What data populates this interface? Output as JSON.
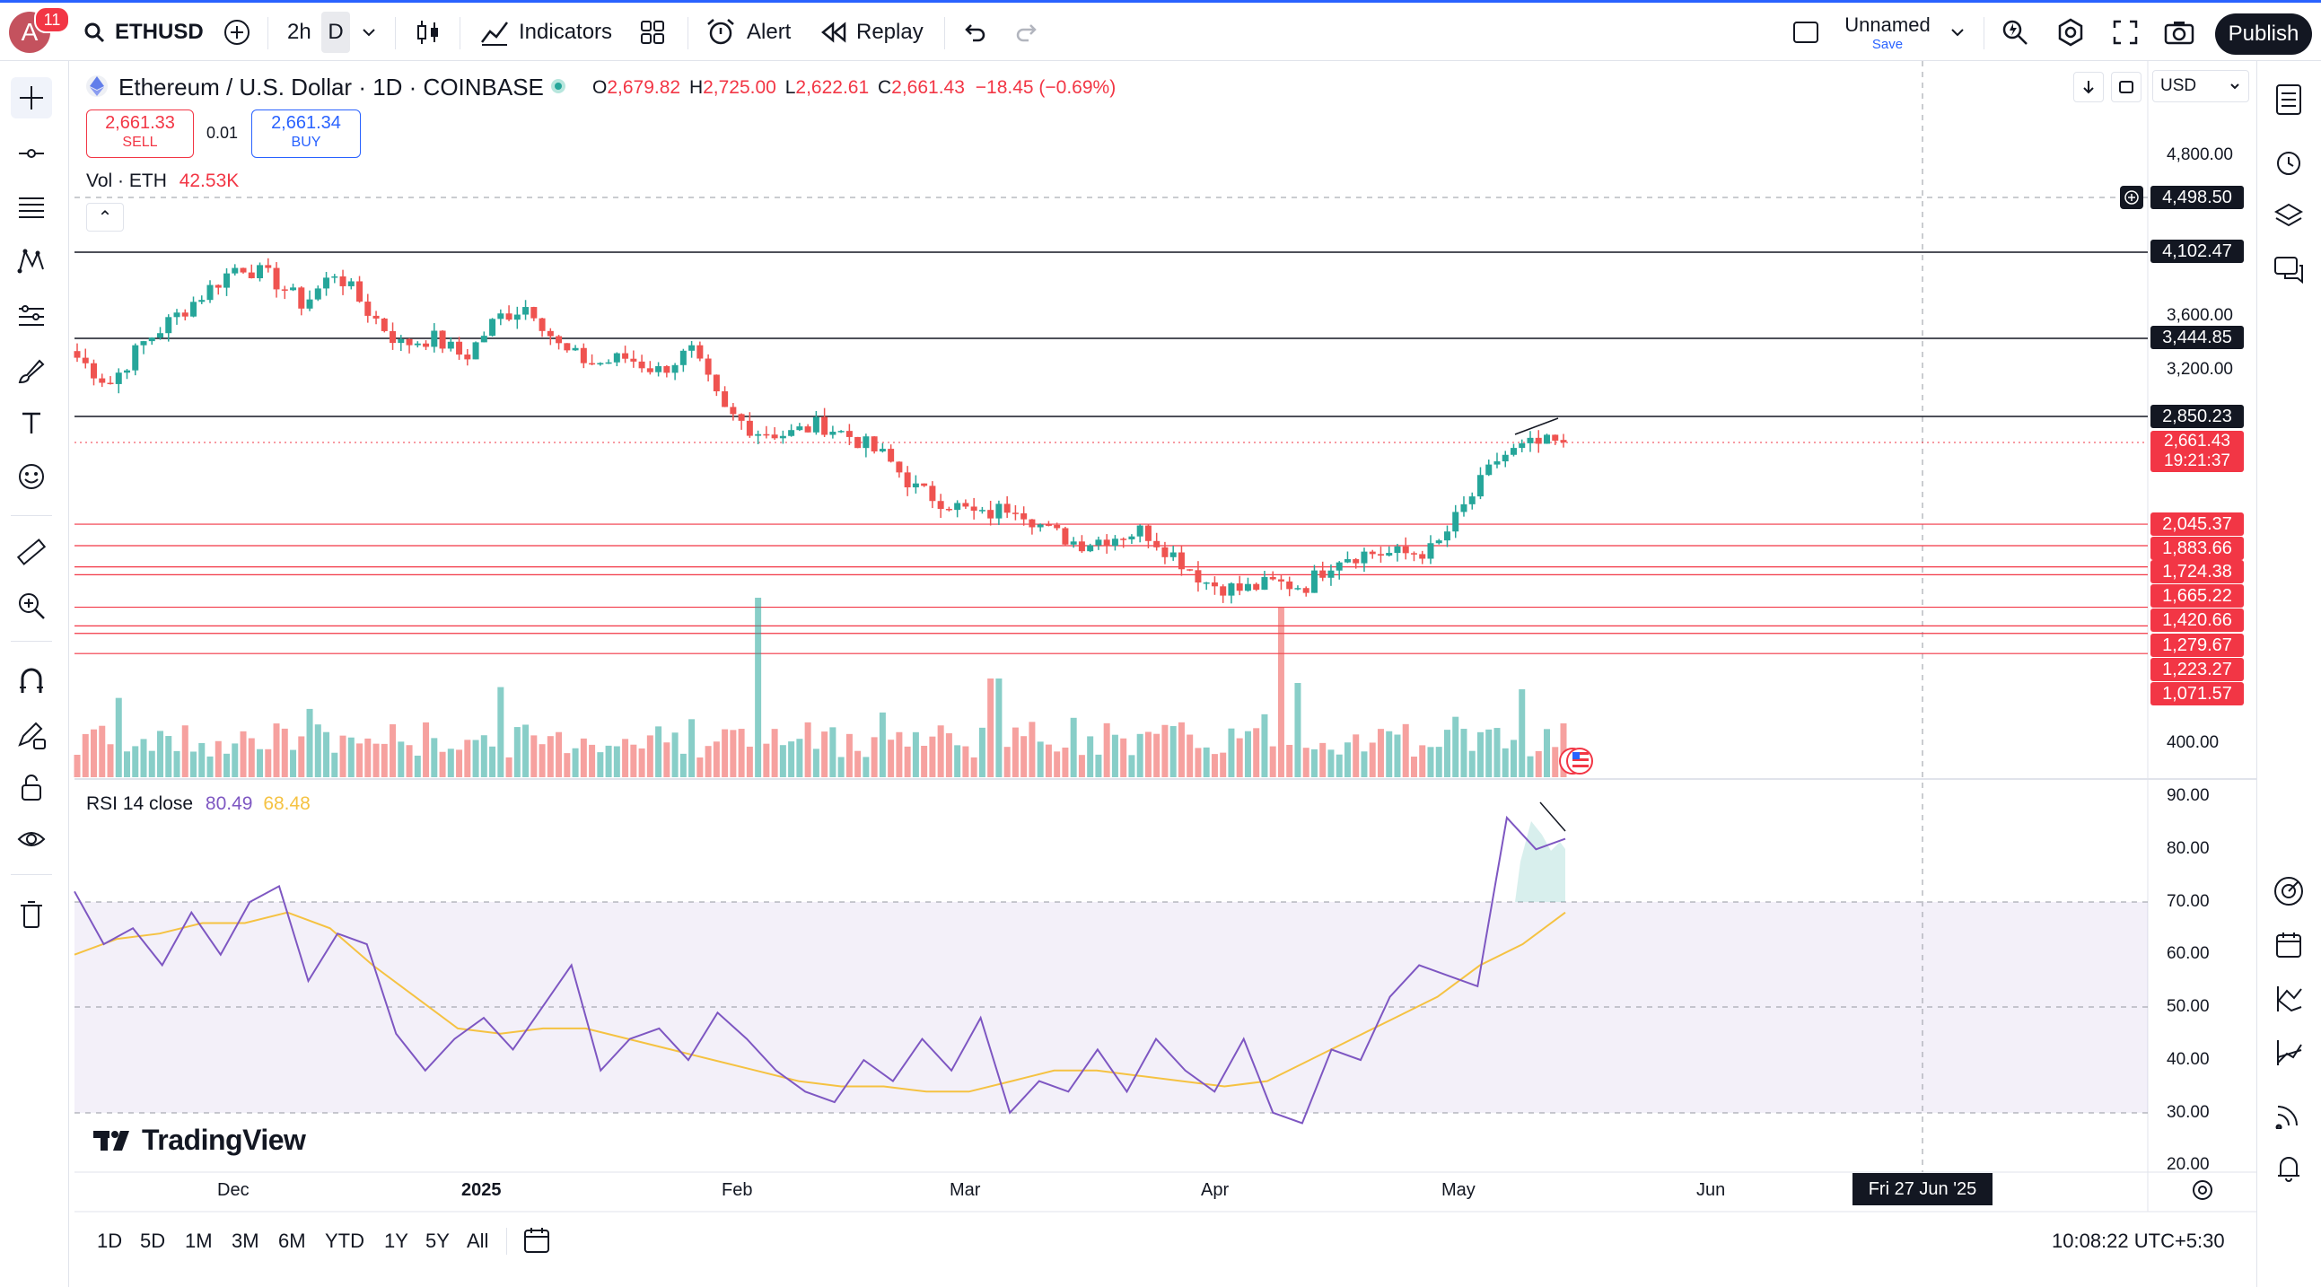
{
  "topbar": {
    "avatar_letter": "A",
    "notification_count": "11",
    "symbol": "ETHUSD",
    "interval_2h": "2h",
    "interval_d": "D",
    "indicators": "Indicators",
    "alert": "Alert",
    "replay": "Replay",
    "layout_name": "Unnamed",
    "layout_save": "Save",
    "publish": "Publish"
  },
  "legend": {
    "title": "Ethereum / U.S. Dollar · 1D · COINBASE",
    "o_label": "O",
    "o_value": "2,679.82",
    "h_label": "H",
    "h_value": "2,725.00",
    "l_label": "L",
    "l_value": "2,622.61",
    "c_label": "C",
    "c_value": "2,661.43",
    "change": "−18.45 (−0.69%)",
    "sell_price": "2,661.33",
    "sell_label": "SELL",
    "spread": "0.01",
    "buy_price": "2,661.34",
    "buy_label": "BUY",
    "vol_label": "Vol · ETH",
    "vol_value": "42.53K",
    "collapse_glyph": "⌃"
  },
  "currency": "USD",
  "price_axis": {
    "ticks": [
      "4,800.00",
      "3,600.00",
      "3,200.00",
      "400.00"
    ],
    "level_labels": [
      "4,498.50",
      "4,102.47",
      "3,444.85",
      "2,850.23"
    ],
    "current_price": "2,661.43",
    "countdown": "19:21:37",
    "red_levels": [
      "2,045.37",
      "1,883.66",
      "1,724.38",
      "1,665.22",
      "1,420.66",
      "1,279.67",
      "1,223.27",
      "1,071.57"
    ]
  },
  "rsi": {
    "label": "RSI 14 close",
    "value1": "80.49",
    "value2": "68.48",
    "ticks": [
      "90.00",
      "80.00",
      "70.00",
      "60.00",
      "50.00",
      "40.00",
      "30.00",
      "20.00"
    ]
  },
  "time_axis": {
    "labels": [
      "Dec",
      "2025",
      "Feb",
      "Mar",
      "Apr",
      "May",
      "Jun"
    ],
    "crosshair_date": "Fri 27 Jun '25"
  },
  "bottombar": {
    "ranges": [
      "1D",
      "5D",
      "1M",
      "3M",
      "6M",
      "YTD",
      "1Y",
      "5Y",
      "All"
    ],
    "clock": "10:08:22 UTC+5:30"
  },
  "watermark": "TradingView",
  "colors": {
    "up": "#26a69a",
    "down": "#ef5350",
    "accent": "#2962ff",
    "rsi": "#7e57c2",
    "rsi_ma": "#f5c242"
  },
  "chart_data": {
    "type": "candlestick",
    "title": "Ethereum / U.S. Dollar · 1D · COINBASE",
    "x_range": [
      "2024-11-15",
      "2025-05-15"
    ],
    "month_labels": [
      "Dec",
      "2025",
      "Feb",
      "Mar",
      "Apr",
      "May",
      "Jun"
    ],
    "closes_approx": [
      3300,
      3100,
      3400,
      3600,
      3800,
      4000,
      3900,
      3700,
      3950,
      3650,
      3400,
      3450,
      3300,
      3600,
      3700,
      3350,
      3250,
      3300,
      3200,
      3350,
      2900,
      2750,
      2720,
      2800,
      2700,
      2550,
      2300,
      2200,
      2100,
      2200,
      2000,
      1900,
      1950,
      2000,
      1800,
      1600,
      1550,
      1600,
      1580,
      1800,
      1830,
      1820,
      1850,
      2200,
      2550,
      2640,
      2661
    ],
    "horizontal_levels": [
      4102.47,
      3444.85,
      2850.23
    ],
    "red_levels": [
      2045.37,
      1883.66,
      1724.38,
      1665.22,
      1420.66,
      1279.67,
      1223.27,
      1071.57
    ],
    "last": {
      "open": 2679.82,
      "high": 2725.0,
      "low": 2622.61,
      "close": 2661.43,
      "change": -18.45,
      "change_pct": -0.69
    },
    "rsi_values_approx": [
      72,
      62,
      65,
      58,
      68,
      60,
      70,
      73,
      55,
      64,
      62,
      45,
      38,
      44,
      48,
      42,
      50,
      58,
      38,
      44,
      46,
      40,
      49,
      44,
      38,
      34,
      32,
      40,
      36,
      44,
      38,
      48,
      30,
      36,
      34,
      42,
      34,
      44,
      38,
      34,
      44,
      30,
      28,
      42,
      40,
      52,
      58,
      56,
      54,
      86,
      80,
      82
    ],
    "rsi_ma_values_approx": [
      60,
      63,
      64,
      66,
      66,
      68,
      65,
      58,
      52,
      46,
      45,
      46,
      46,
      44,
      42,
      40,
      38,
      36,
      35,
      35,
      34,
      34,
      36,
      38,
      38,
      37,
      36,
      35,
      36,
      40,
      44,
      48,
      52,
      58,
      62,
      68
    ],
    "rsi_label": "RSI 14 close",
    "rsi_last": 80.49,
    "rsi_ma_last": 68.48,
    "rsi_ylim": [
      20,
      90
    ],
    "rsi_band": [
      30,
      70
    ]
  }
}
